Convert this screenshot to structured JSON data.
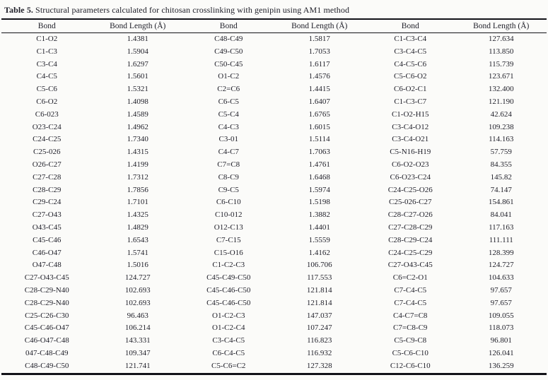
{
  "caption": {
    "label": "Table 5.",
    "text": "Structural parameters calculated for chitosan crosslinking with genipin using AM1 method"
  },
  "table": {
    "headers": [
      "Bond",
      "Bond Length (Å)",
      "Bond",
      "Bond Length (Å)",
      "Bond",
      "Bond Length (Å)"
    ],
    "rows": [
      [
        "C1-O2",
        "1.4381",
        "C48-C49",
        "1.5817",
        "C1-C3-C4",
        "127.634"
      ],
      [
        "C1-C3",
        "1.5904",
        "C49-C50",
        "1.7053",
        "C3-C4-C5",
        "113.850"
      ],
      [
        "C3-C4",
        "1.6297",
        "C50-C45",
        "1.6117",
        "C4-C5-C6",
        "115.739"
      ],
      [
        "C4-C5",
        "1.5601",
        "O1-C2",
        "1.4576",
        "C5-C6-O2",
        "123.671"
      ],
      [
        "C5-C6",
        "1.5321",
        "C2=C6",
        "1.4415",
        "C6-O2-C1",
        "132.400"
      ],
      [
        "C6-O2",
        "1.4098",
        "C6-C5",
        "1.6407",
        "C1-C3-C7",
        "121.190"
      ],
      [
        "C6-023",
        "1.4589",
        "C5-C4",
        "1.6765",
        "C1-O2-H15",
        "42.624"
      ],
      [
        "O23-C24",
        "1.4962",
        "C4-C3",
        "1.6015",
        "C3-C4-O12",
        "109.238"
      ],
      [
        "C24-C25",
        "1.7340",
        "C3-01",
        "1.5114",
        "C3-C4-O21",
        "114.163"
      ],
      [
        "C25-026",
        "1.4315",
        "C4-C7",
        "1.7063",
        "C5-N16-H19",
        "57.759"
      ],
      [
        "O26-C27",
        "1.4199",
        "C7=C8",
        "1.4761",
        "C6-O2-O23",
        "84.355"
      ],
      [
        "C27-C28",
        "1.7312",
        "C8-C9",
        "1.6468",
        "C6-O23-C24",
        "145.82"
      ],
      [
        "C28-C29",
        "1.7856",
        "C9-C5",
        "1.5974",
        "C24-C25-O26",
        "74.147"
      ],
      [
        "C29-C24",
        "1.7101",
        "C6-C10",
        "1.5198",
        "C25-026-C27",
        "154.861"
      ],
      [
        "C27-O43",
        "1.4325",
        "C10-012",
        "1.3882",
        "C28-C27-O26",
        "84.041"
      ],
      [
        "O43-C45",
        "1.4829",
        "O12-C13",
        "1.4401",
        "C27-C28-C29",
        "117.163"
      ],
      [
        "C45-C46",
        "1.6543",
        "C7-C15",
        "1.5559",
        "C28-C29-C24",
        "111.111"
      ],
      [
        "C46-O47",
        "1.5741",
        "C15-O16",
        "1.4162",
        "C24-C25-C29",
        "128.399"
      ],
      [
        "O47-C48",
        "1.5016",
        "C1-C2-C3",
        "106.706",
        "C27-O43-C45",
        "124.727"
      ],
      [
        "C27-O43-C45",
        "124.727",
        "C45-C49-C50",
        "117.553",
        "C6=C2-O1",
        "104.633"
      ],
      [
        "C28-C29-N40",
        "102.693",
        "C45-C46-C50",
        "121.814",
        "C7-C4-C5",
        "97.657"
      ],
      [
        "C28-C29-N40",
        "102.693",
        "C45-C46-C50",
        "121.814",
        "C7-C4-C5",
        "97.657"
      ],
      [
        "C25-C26-C30",
        "96.463",
        "O1-C2-C3",
        "147.037",
        "C4-C7=C8",
        "109.055"
      ],
      [
        "C45-C46-O47",
        "106.214",
        "O1-C2-C4",
        "107.247",
        "C7=C8-C9",
        "118.073"
      ],
      [
        "C46-O47-C48",
        "143.331",
        "C3-C4-C5",
        "116.823",
        "C5-C9-C8",
        "96.801"
      ],
      [
        "047-C48-C49",
        "109.347",
        "C6-C4-C5",
        "116.932",
        "C5-C6-C10",
        "126.041"
      ],
      [
        "C48-C49-C50",
        "121.741",
        "C5-C6=C2",
        "127.328",
        "C12-C6-C10",
        "136.259"
      ]
    ]
  }
}
